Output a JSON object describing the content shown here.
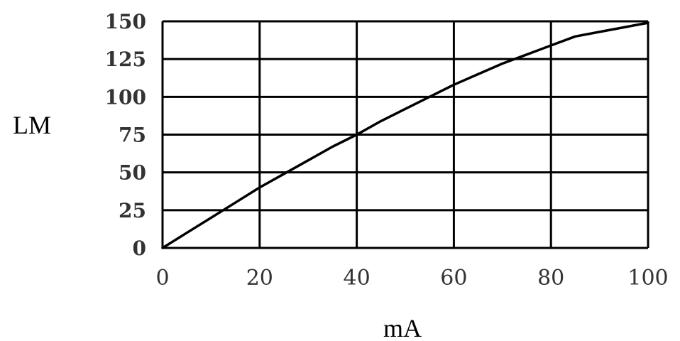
{
  "chart_data": {
    "type": "line",
    "title": "",
    "xlabel": "mA",
    "ylabel": "LM",
    "xlim": [
      0,
      100
    ],
    "ylim": [
      0,
      150
    ],
    "x_ticks": [
      0,
      20,
      40,
      60,
      80,
      100
    ],
    "y_ticks": [
      0,
      25,
      50,
      75,
      100,
      125,
      150
    ],
    "x_tick_labels": [
      "0",
      "20",
      "40",
      "60",
      "80",
      "100"
    ],
    "y_tick_labels": [
      "0",
      "25",
      "50",
      "75",
      "100",
      "125",
      "150"
    ],
    "grid": true,
    "legend": "none",
    "series": [
      {
        "x": [
          0,
          5,
          10,
          15,
          20,
          25,
          30,
          35,
          40,
          45,
          50,
          55,
          60,
          65,
          70,
          75,
          80,
          85,
          90,
          95,
          100
        ],
        "y": [
          0,
          10,
          20,
          30,
          40,
          49,
          58,
          67,
          75,
          84,
          92,
          100,
          108,
          115,
          122,
          128,
          134,
          140,
          143,
          146,
          149
        ],
        "color": "#000000"
      }
    ]
  }
}
